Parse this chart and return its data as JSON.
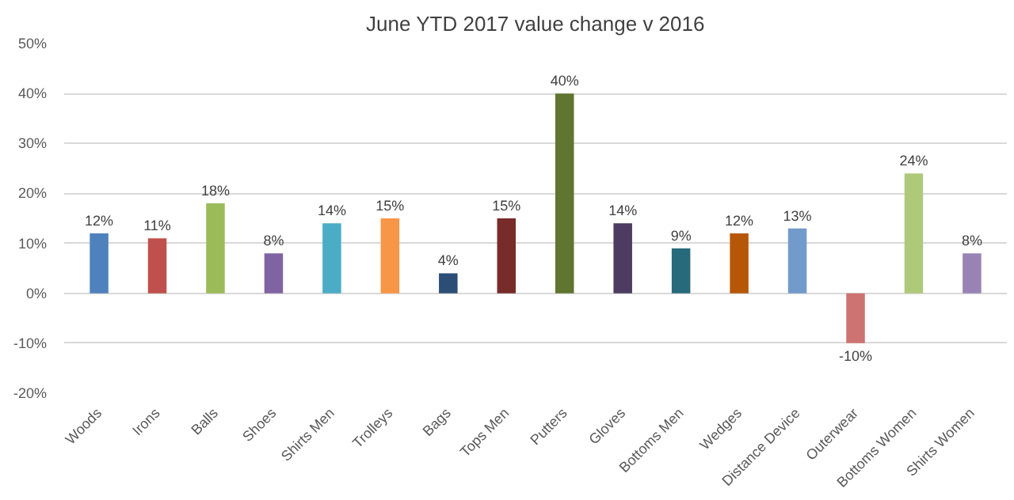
{
  "chart_data": {
    "type": "bar",
    "title": "June YTD 2017 value change v 2016",
    "categories": [
      "Woods",
      "Irons",
      "Balls",
      "Shoes",
      "Shirts Men",
      "Trolleys",
      "Bags",
      "Tops Men",
      "Putters",
      "Gloves",
      "Bottoms Men",
      "Wedges",
      "Distance Device",
      "Outerwear",
      "Bottoms Women",
      "Shirts Women"
    ],
    "values": [
      12,
      11,
      18,
      8,
      14,
      15,
      4,
      15,
      40,
      14,
      9,
      12,
      13,
      -10,
      24,
      8
    ],
    "value_labels": [
      "12%",
      "11%",
      "18%",
      "8%",
      "14%",
      "15%",
      "4%",
      "15%",
      "40%",
      "14%",
      "9%",
      "12%",
      "13%",
      "-10%",
      "24%",
      "8%"
    ],
    "colors": [
      "#4f81bd",
      "#c0504d",
      "#9bbb59",
      "#8064a2",
      "#4bacc6",
      "#f79646",
      "#2c4d75",
      "#772c2a",
      "#5f7530",
      "#4d3b62",
      "#276a7c",
      "#b65708",
      "#729aca",
      "#cd7371",
      "#afc97a",
      "#9983b5"
    ],
    "ylim": [
      -20,
      50
    ],
    "yticks": [
      {
        "value": -20,
        "label": "-20%"
      },
      {
        "value": -10,
        "label": "-10%"
      },
      {
        "value": 0,
        "label": "0%"
      },
      {
        "value": 10,
        "label": "10%"
      },
      {
        "value": 20,
        "label": "20%"
      },
      {
        "value": 30,
        "label": "30%"
      },
      {
        "value": 40,
        "label": "40%"
      },
      {
        "value": 50,
        "label": "50%"
      }
    ],
    "grid": "y"
  }
}
